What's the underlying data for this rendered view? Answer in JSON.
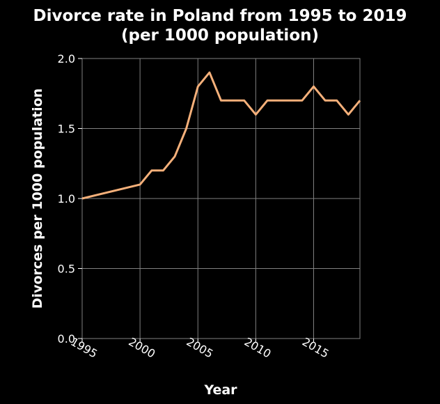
{
  "chart_data": {
    "type": "line",
    "title": "Divorce rate in Poland from 1995 to 2019",
    "subtitle": "(per 1000 population)",
    "xlabel": "Year",
    "ylabel": "Divorces per 1000 population",
    "xlim": [
      1995,
      2019
    ],
    "ylim": [
      0.0,
      2.0
    ],
    "xticks": [
      1995,
      2000,
      2005,
      2010,
      2015
    ],
    "xtick_labels": [
      "1995",
      "2000",
      "2005",
      "2010",
      "2015"
    ],
    "yticks": [
      0.0,
      0.5,
      1.0,
      1.5,
      2.0
    ],
    "ytick_labels": [
      "0.0",
      "0.5",
      "1.0",
      "1.5",
      "2.0"
    ],
    "grid": true,
    "series": [
      {
        "color": "#f5b07a",
        "x": [
          1995,
          2000,
          2001,
          2002,
          2003,
          2004,
          2005,
          2006,
          2007,
          2008,
          2009,
          2010,
          2011,
          2012,
          2013,
          2014,
          2015,
          2016,
          2017,
          2018,
          2019
        ],
        "y": [
          1.0,
          1.1,
          1.2,
          1.2,
          1.3,
          1.5,
          1.8,
          1.9,
          1.7,
          1.7,
          1.7,
          1.6,
          1.7,
          1.7,
          1.7,
          1.7,
          1.8,
          1.7,
          1.7,
          1.6,
          1.7
        ]
      }
    ],
    "colors": {
      "background": "#000000",
      "grid": "#808080",
      "text": "#ffffff"
    }
  }
}
